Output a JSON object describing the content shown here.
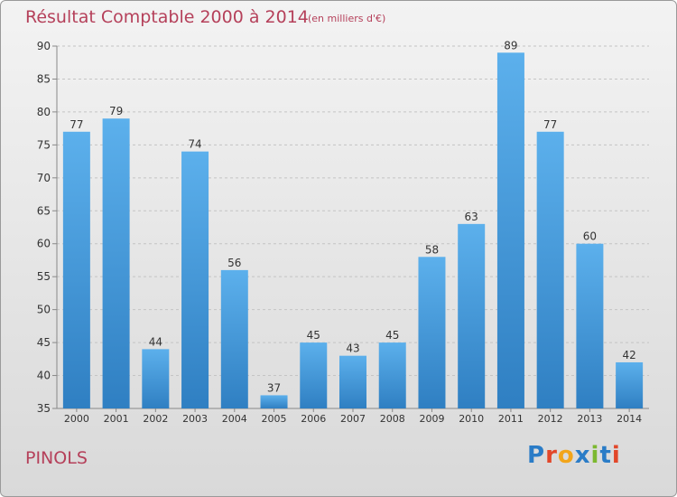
{
  "header": {
    "title": "Résultat Comptable 2000 à 2014",
    "subtitle": "(en milliers d'€)"
  },
  "footer": {
    "commune": "PINOLS",
    "logo_letters": [
      "P",
      "r",
      "o",
      "x",
      "i",
      "t",
      "i"
    ],
    "logo_colors": [
      "#2a7cc7",
      "#e2472a",
      "#f2a51a",
      "#2a7cc7",
      "#7cb82f",
      "#2a7cc7",
      "#e2472a"
    ]
  },
  "chart_data": {
    "type": "bar",
    "categories": [
      "2000",
      "2001",
      "2002",
      "2003",
      "2004",
      "2005",
      "2006",
      "2007",
      "2008",
      "2009",
      "2010",
      "2011",
      "2012",
      "2013",
      "2014"
    ],
    "values": [
      77,
      79,
      44,
      74,
      56,
      37,
      45,
      43,
      45,
      58,
      63,
      89,
      77,
      60,
      42
    ],
    "ylim": [
      35,
      90
    ],
    "yticks": [
      35,
      40,
      45,
      50,
      55,
      60,
      65,
      70,
      75,
      80,
      85,
      90
    ],
    "grid": true,
    "bar_color": "#4a9ee0"
  }
}
